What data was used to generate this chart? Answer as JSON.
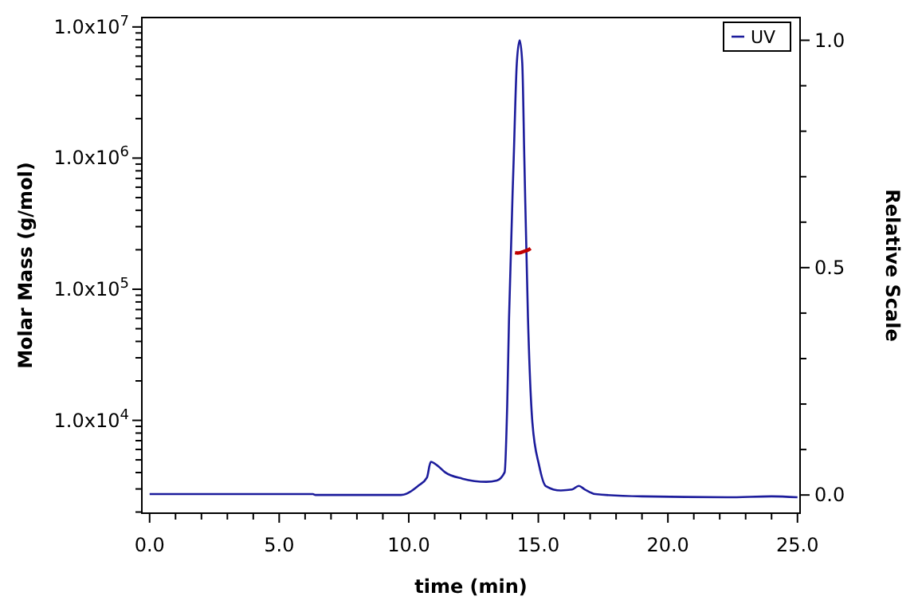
{
  "chart_data": {
    "type": "line",
    "xlabel": "time (min)",
    "ylabel": "Molar Mass (g/mol)",
    "y2label": "Relative Scale",
    "log": "y",
    "grid": false,
    "legend": "top right",
    "xlim": [
      -0.3,
      25.1
    ],
    "xticks": [
      {
        "value": 0,
        "label": "0.0"
      },
      {
        "value": 1,
        "label": null
      },
      {
        "value": 2,
        "label": null
      },
      {
        "value": 3,
        "label": null
      },
      {
        "value": 4,
        "label": null
      },
      {
        "value": 5,
        "label": "5.0"
      },
      {
        "value": 6,
        "label": null
      },
      {
        "value": 7,
        "label": null
      },
      {
        "value": 8,
        "label": null
      },
      {
        "value": 9,
        "label": null
      },
      {
        "value": 10,
        "label": "10.0"
      },
      {
        "value": 11,
        "label": null
      },
      {
        "value": 12,
        "label": null
      },
      {
        "value": 13,
        "label": null
      },
      {
        "value": 14,
        "label": null
      },
      {
        "value": 15,
        "label": "15.0"
      },
      {
        "value": 16,
        "label": null
      },
      {
        "value": 17,
        "label": null
      },
      {
        "value": 18,
        "label": null
      },
      {
        "value": 19,
        "label": null
      },
      {
        "value": 20,
        "label": "20.0"
      },
      {
        "value": 21,
        "label": null
      },
      {
        "value": 22,
        "label": null
      },
      {
        "value": 23,
        "label": null
      },
      {
        "value": 24,
        "label": null
      },
      {
        "value": 25,
        "label": "25.0"
      }
    ],
    "ylim": [
      1960,
      11800000
    ],
    "yticks": [
      {
        "value": 2000,
        "label": null
      },
      {
        "value": 3000,
        "label": null
      },
      {
        "value": 4000,
        "label": null
      },
      {
        "value": 5000,
        "label": null
      },
      {
        "value": 6000,
        "label": null
      },
      {
        "value": 7000,
        "label": null
      },
      {
        "value": 8000,
        "label": null
      },
      {
        "value": 9000,
        "label": null
      },
      {
        "value": 10000,
        "label": "1.0x10$^{4}$"
      },
      {
        "value": 20000,
        "label": null
      },
      {
        "value": 30000,
        "label": null
      },
      {
        "value": 40000,
        "label": null
      },
      {
        "value": 50000,
        "label": null
      },
      {
        "value": 60000,
        "label": null
      },
      {
        "value": 70000,
        "label": null
      },
      {
        "value": 80000,
        "label": null
      },
      {
        "value": 90000,
        "label": null
      },
      {
        "value": 100000,
        "label": "1.0x10$^{5}$"
      },
      {
        "value": 200000,
        "label": null
      },
      {
        "value": 300000,
        "label": null
      },
      {
        "value": 400000,
        "label": null
      },
      {
        "value": 500000,
        "label": null
      },
      {
        "value": 600000,
        "label": null
      },
      {
        "value": 700000,
        "label": null
      },
      {
        "value": 800000,
        "label": null
      },
      {
        "value": 900000,
        "label": null
      },
      {
        "value": 1000000,
        "label": "1.0x10$^{6}$"
      },
      {
        "value": 2000000,
        "label": null
      },
      {
        "value": 3000000,
        "label": null
      },
      {
        "value": 4000000,
        "label": null
      },
      {
        "value": 5000000,
        "label": null
      },
      {
        "value": 6000000,
        "label": null
      },
      {
        "value": 7000000,
        "label": null
      },
      {
        "value": 8000000,
        "label": null
      },
      {
        "value": 9000000,
        "label": null
      },
      {
        "value": 10000000,
        "label": "1.0x10$^{7}$"
      }
    ],
    "y2lim": [
      -0.04,
      1.05
    ],
    "y2ticks": [
      {
        "value": 0,
        "label": "0.0"
      },
      {
        "value": 0.1,
        "label": null
      },
      {
        "value": 0.2,
        "label": null
      },
      {
        "value": 0.3,
        "label": null
      },
      {
        "value": 0.4,
        "label": null
      },
      {
        "value": 0.5,
        "label": "0.5"
      },
      {
        "value": 0.6,
        "label": null
      },
      {
        "value": 0.7,
        "label": null
      },
      {
        "value": 0.8,
        "label": null
      },
      {
        "value": 0.9,
        "label": null
      },
      {
        "value": 1,
        "label": "1.0"
      }
    ],
    "series": [
      {
        "name": "UV",
        "color": "#1c1c9c",
        "axis": "y2",
        "x": [
          0,
          3,
          6.3,
          6.4,
          9.7,
          10.36,
          10.7,
          10.85,
          11.1,
          11.4,
          12.07,
          13.0,
          13.4,
          13.7,
          13.8,
          13.87,
          14.05,
          14.17,
          14.28,
          14.38,
          14.46,
          14.6,
          14.77,
          15.03,
          15.28,
          15.87,
          16.3,
          16.56,
          16.8,
          17.2,
          19,
          22.3,
          24,
          25
        ],
        "values": [
          0.002,
          0.002,
          0.002,
          0,
          0,
          0.02,
          0.038,
          0.073,
          0.065,
          0.05,
          0.036,
          0.029,
          0.032,
          0.05,
          0.2,
          0.39,
          0.74,
          0.95,
          1.0,
          0.95,
          0.74,
          0.39,
          0.16,
          0.065,
          0.02,
          0.01,
          0.012,
          0.02,
          0.012,
          0.002,
          -0.003,
          -0.005,
          -0.003,
          -0.005
        ]
      },
      {
        "color": "#c00000",
        "axis": "y",
        "x": [
          14.1,
          14.2,
          14.3,
          14.4,
          14.5,
          14.6,
          14.7
        ],
        "values": [
          190000,
          189000,
          190000,
          193000,
          196000,
          199000,
          205000
        ]
      }
    ]
  }
}
